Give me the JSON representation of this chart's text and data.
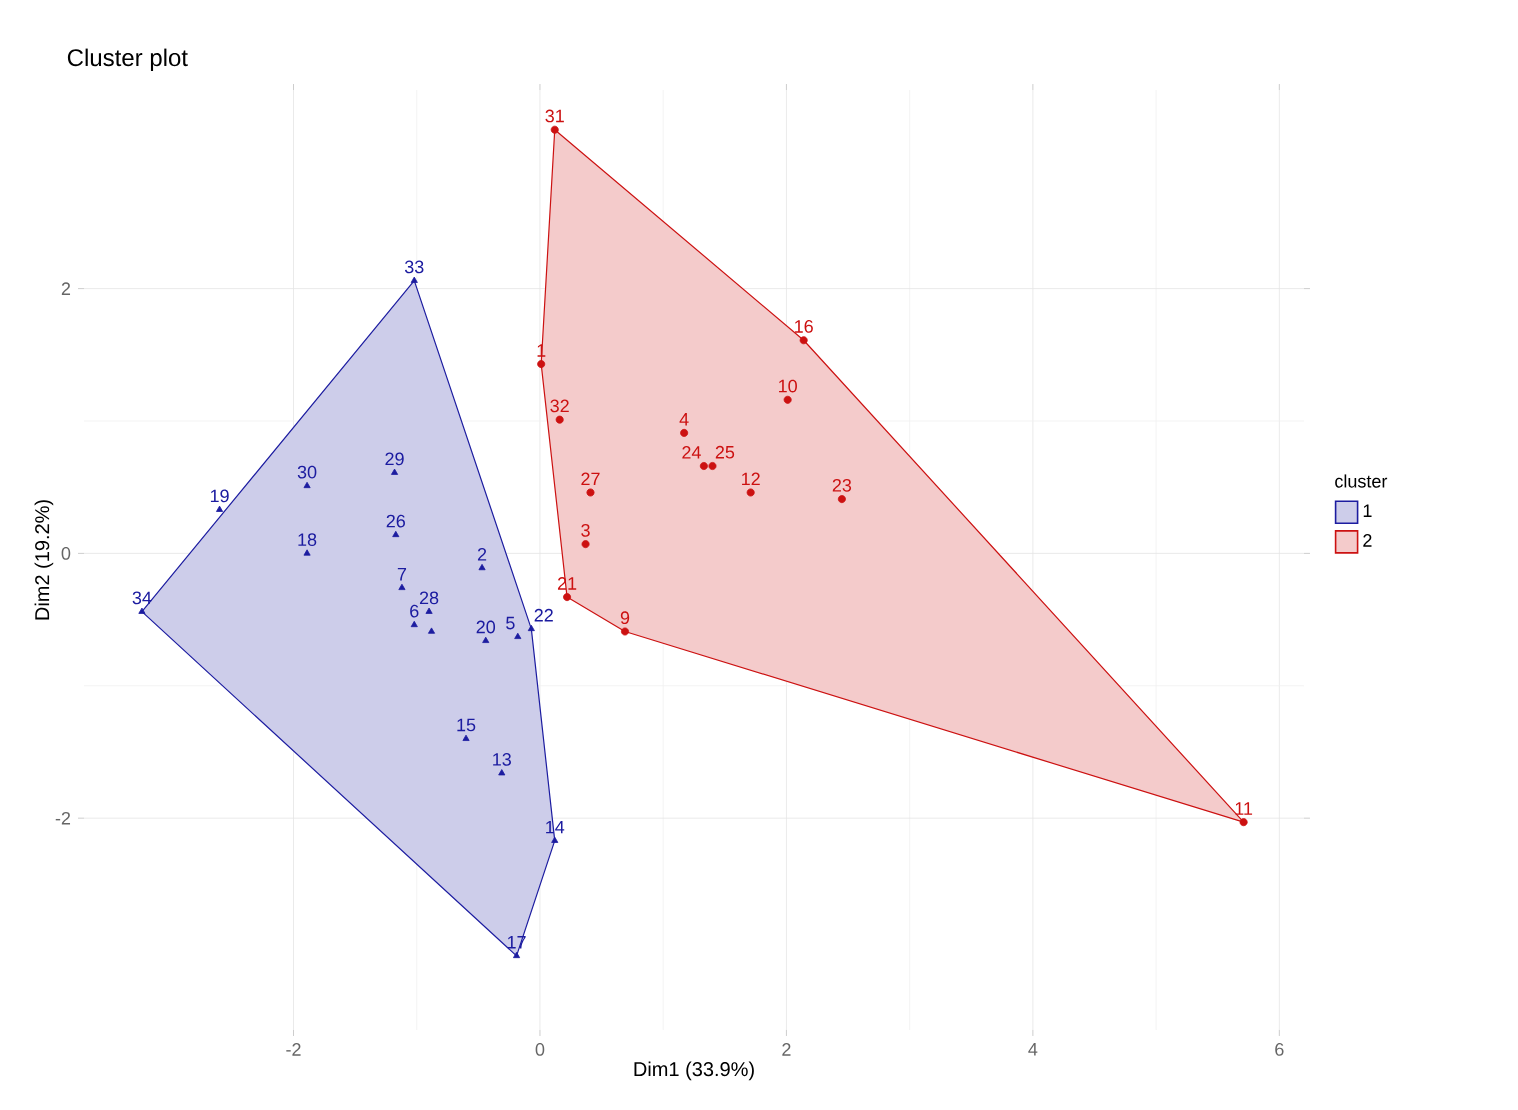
{
  "chart_data": {
    "type": "scatter",
    "title": "Cluster plot",
    "xlabel": "Dim1 (33.9%)",
    "ylabel": "Dim2 (19.2%)",
    "legend_title": "cluster",
    "legend": "right",
    "grid": true,
    "xlim": [
      -3.7,
      6.2
    ],
    "ylim": [
      -3.6,
      3.5
    ],
    "xticks": [
      -2,
      0,
      2,
      4,
      6
    ],
    "yticks": [
      -2,
      0,
      2
    ],
    "series": [
      {
        "name": "1",
        "color": "#1c1ca0",
        "marker": "triangle",
        "x": [
          -1.02,
          -2.6,
          -1.89,
          -1.18,
          -1.89,
          -1.17,
          -0.47,
          -1.12,
          -0.9,
          -1.02,
          -0.88,
          -0.44,
          -0.18,
          -0.07,
          -0.6,
          -0.31,
          0.12,
          -0.19,
          -3.23
        ],
        "values": [
          2.06,
          0.33,
          0.51,
          0.61,
          0.0,
          0.14,
          -0.11,
          -0.26,
          -0.44,
          -0.54,
          -0.59,
          -0.66,
          -0.63,
          -0.57,
          -1.4,
          -1.66,
          -2.17,
          -3.04,
          -0.44
        ]
      },
      {
        "name": "2",
        "color": "#cc1111",
        "marker": "circle",
        "x": [
          0.12,
          0.01,
          0.16,
          0.41,
          0.37,
          0.22,
          0.69,
          1.17,
          1.33,
          1.4,
          1.71,
          2.01,
          2.14,
          2.45,
          5.71
        ],
        "values": [
          3.2,
          1.43,
          1.01,
          0.46,
          0.07,
          -0.33,
          -0.59,
          0.91,
          0.66,
          0.66,
          0.46,
          1.16,
          1.61,
          0.41,
          -2.03
        ]
      },
      {
        "type": "area",
        "color": "#1c1ca0",
        "x": [
          -1.02,
          -3.23,
          -0.19,
          0.12,
          -0.07
        ],
        "values": [
          2.06,
          -0.44,
          -3.04,
          -2.17,
          -0.57
        ]
      },
      {
        "type": "area",
        "color": "#cc1111",
        "x": [
          0.12,
          0.01,
          0.22,
          0.69,
          5.71,
          2.14
        ],
        "values": [
          3.2,
          1.43,
          -0.33,
          -0.59,
          -2.03,
          1.61
        ]
      }
    ],
    "annotations": [
      {
        "text": "33",
        "x": -1.02,
        "y": 2.06
      },
      {
        "text": "19",
        "x": -2.6,
        "y": 0.33
      },
      {
        "text": "30",
        "x": -1.89,
        "y": 0.51
      },
      {
        "text": "29",
        "x": -1.18,
        "y": 0.61
      },
      {
        "text": "18",
        "x": -1.89,
        "y": 0.0
      },
      {
        "text": "26",
        "x": -1.17,
        "y": 0.14
      },
      {
        "text": "2",
        "x": -0.47,
        "y": -0.11
      },
      {
        "text": "7",
        "x": -1.12,
        "y": -0.26
      },
      {
        "text": "28",
        "x": -0.9,
        "y": -0.44
      },
      {
        "text": "6",
        "x": -1.02,
        "y": -0.54
      },
      {
        "text": "20",
        "x": -0.44,
        "y": -0.66
      },
      {
        "text": "5",
        "x": -0.18,
        "y": -0.63
      },
      {
        "text": "22",
        "x": -0.07,
        "y": -0.57
      },
      {
        "text": "15",
        "x": -0.6,
        "y": -1.4
      },
      {
        "text": "13",
        "x": -0.31,
        "y": -1.66
      },
      {
        "text": "14",
        "x": 0.12,
        "y": -2.17
      },
      {
        "text": "17",
        "x": -0.19,
        "y": -3.04
      },
      {
        "text": "34",
        "x": -3.23,
        "y": -0.44
      },
      {
        "text": "31",
        "x": 0.12,
        "y": 3.2
      },
      {
        "text": "1",
        "x": 0.01,
        "y": 1.43
      },
      {
        "text": "32",
        "x": 0.16,
        "y": 1.01
      },
      {
        "text": "27",
        "x": 0.41,
        "y": 0.46
      },
      {
        "text": "3",
        "x": 0.37,
        "y": 0.07
      },
      {
        "text": "21",
        "x": 0.22,
        "y": -0.33
      },
      {
        "text": "9",
        "x": 0.69,
        "y": -0.59
      },
      {
        "text": "4",
        "x": 1.17,
        "y": 0.91
      },
      {
        "text": "24",
        "x": 1.33,
        "y": 0.66
      },
      {
        "text": "25",
        "x": 1.4,
        "y": 0.66
      },
      {
        "text": "12",
        "x": 1.71,
        "y": 0.46
      },
      {
        "text": "10",
        "x": 2.01,
        "y": 1.16
      },
      {
        "text": "16",
        "x": 2.14,
        "y": 1.61
      },
      {
        "text": "23",
        "x": 2.45,
        "y": 0.41
      },
      {
        "text": "11",
        "x": 5.71,
        "y": -2.03
      }
    ]
  }
}
